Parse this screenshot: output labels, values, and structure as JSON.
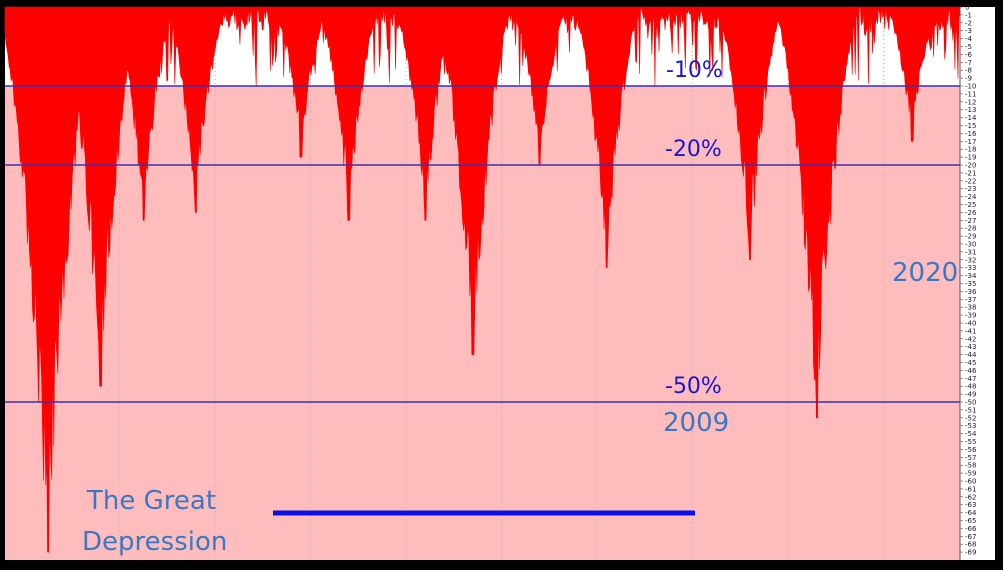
{
  "chart_data": {
    "type": "area",
    "title": "",
    "xlabel": "",
    "ylabel": "",
    "ylim": [
      -70,
      0
    ],
    "yticks": [
      0,
      -1,
      -2,
      -3,
      -4,
      -5,
      -6,
      -7,
      -8,
      -9,
      -10,
      -11,
      -12,
      -13,
      -14,
      -15,
      -16,
      -17,
      -18,
      -19,
      -20,
      -21,
      -22,
      -23,
      -24,
      -25,
      -26,
      -27,
      -28,
      -29,
      -30,
      -31,
      -32,
      -33,
      -34,
      -35,
      -36,
      -37,
      -38,
      -39,
      -40,
      -41,
      -42,
      -43,
      -44,
      -45,
      -46,
      -47,
      -48,
      -49,
      -50,
      -51,
      -52,
      -53,
      -54,
      -55,
      -56,
      -57,
      -58,
      -59,
      -60,
      -61,
      -62,
      -63,
      -64,
      -65,
      -66,
      -67,
      -68,
      -69
    ],
    "reference_lines": [
      {
        "value": -10,
        "label": "-10%"
      },
      {
        "value": -20,
        "label": "-20%"
      },
      {
        "value": -50,
        "label": "-50%"
      }
    ],
    "drawdown_troughs": [
      {
        "x": 0.03,
        "value": -35
      },
      {
        "x": 0.045,
        "value": -69
      },
      {
        "x": 0.1,
        "value": -48
      },
      {
        "x": 0.145,
        "value": -27
      },
      {
        "x": 0.2,
        "value": -26
      },
      {
        "x": 0.31,
        "value": -19
      },
      {
        "x": 0.36,
        "value": -27
      },
      {
        "x": 0.44,
        "value": -27
      },
      {
        "x": 0.49,
        "value": -44
      },
      {
        "x": 0.56,
        "value": -20
      },
      {
        "x": 0.63,
        "value": -33
      },
      {
        "x": 0.78,
        "value": -32
      },
      {
        "x": 0.85,
        "value": -52
      },
      {
        "x": 0.95,
        "value": -17
      }
    ],
    "colors": {
      "drawdown": "#ff0000",
      "band_fill": "#ffbcbc",
      "reference_line": "#3a2fb0",
      "depression_bar": "#0a10e6"
    }
  },
  "annotations": {
    "minus10": "-10%",
    "minus20": "-20%",
    "minus50": "-50%",
    "year2009": "2009",
    "year2020": "2020",
    "great_depression_line1": "The Great",
    "great_depression_line2": "Depression"
  }
}
